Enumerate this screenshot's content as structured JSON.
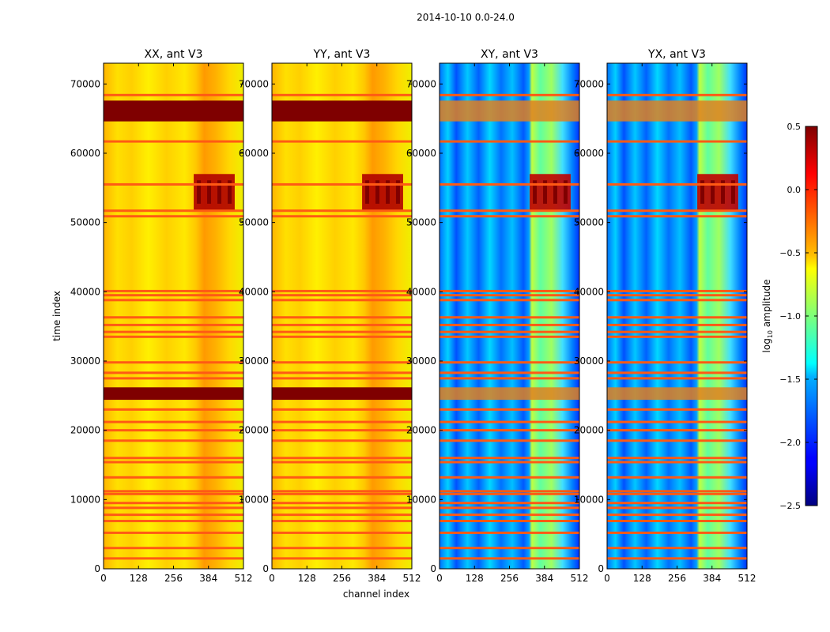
{
  "chart_data": {
    "type": "heatmap",
    "suptitle": "2014-10-10 0.0-24.0",
    "xlabel": "channel index",
    "ylabel": "time index",
    "xlim": [
      0,
      512
    ],
    "ylim": [
      0,
      73000
    ],
    "xticks": [
      "0",
      "128",
      "256",
      "384",
      "512"
    ],
    "xtick_values": [
      0,
      128,
      256,
      384,
      512
    ],
    "yticks": [
      "0",
      "10000",
      "20000",
      "30000",
      "40000",
      "50000",
      "60000",
      "70000"
    ],
    "ytick_values": [
      0,
      10000,
      20000,
      30000,
      40000,
      50000,
      60000,
      70000
    ],
    "panels": [
      {
        "title": "XX, ant V3",
        "style": "auto"
      },
      {
        "title": "YY, ant V3",
        "style": "auto"
      },
      {
        "title": "XY, ant V3",
        "style": "cross"
      },
      {
        "title": "YX, ant V3",
        "style": "cross"
      }
    ],
    "colorbar": {
      "label_prefix": "log",
      "label_sub": "10",
      "label_suffix": " amplitude",
      "range": [
        -2.5,
        0.5
      ],
      "ticks": [
        "0.5",
        "0.0",
        "−0.5",
        "−1.0",
        "−1.5",
        "−2.0",
        "−2.5"
      ],
      "tick_values": [
        0.5,
        0.0,
        -0.5,
        -1.0,
        -1.5,
        -2.0,
        -2.5
      ],
      "colormap": "jet"
    },
    "flagged_rows_time_index": [
      1500,
      3000,
      5200,
      6900,
      7800,
      8800,
      9500,
      10800,
      11200,
      13200,
      15400,
      16000,
      18500,
      20000,
      21200,
      23000,
      27500,
      28300,
      29800,
      33500,
      34200,
      35200,
      36300,
      38800,
      39500,
      40100,
      50900,
      51700,
      55500,
      61700,
      68400
    ],
    "strong_bands_time_index": [
      [
        24400,
        26200
      ],
      [
        64600,
        67600
      ]
    ],
    "rfi_blocks": [
      [
        330,
        480,
        51800,
        57000
      ]
    ]
  }
}
